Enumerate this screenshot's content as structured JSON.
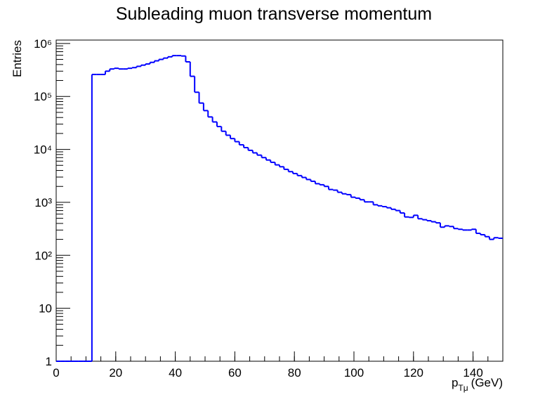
{
  "chart_data": {
    "type": "histogram",
    "title": "Subleading muon transverse momentum",
    "x_label": {
      "symbol": "p",
      "subscript": "Tμ",
      "unit": "(GeV)"
    },
    "y_label": "Entries",
    "color": "#0000ff",
    "log_y": true,
    "bins": [
      0,
      1.5,
      3,
      4.5,
      6,
      7.5,
      9,
      10.5,
      12,
      13.5,
      15,
      16.5,
      18,
      19.5,
      21,
      22.5,
      24,
      25.5,
      27,
      28.5,
      30,
      31.5,
      33,
      34.5,
      36,
      37.5,
      39,
      40.5,
      42,
      43.5,
      45,
      46.5,
      48,
      49.5,
      51,
      52.5,
      54,
      55.5,
      57,
      58.5,
      60,
      61.5,
      63,
      64.5,
      66,
      67.5,
      69,
      70.5,
      72,
      73.5,
      75,
      76.5,
      78,
      79.5,
      81,
      82.5,
      84,
      85.5,
      87,
      88.5,
      90,
      91.5,
      93,
      94.5,
      96,
      97.5,
      99,
      100.5,
      102,
      103.5,
      105,
      106.5,
      108,
      109.5,
      111,
      112.5,
      114,
      115.5,
      117,
      118.5,
      120,
      121.5,
      123,
      124.5,
      126,
      127.5,
      129,
      130.5,
      132,
      133.5,
      135,
      136.5,
      138,
      139.5,
      141,
      142.5,
      144,
      145.5,
      147,
      148.5,
      150
    ],
    "values": [
      1,
      1,
      1,
      1,
      1,
      1,
      1,
      1,
      260000,
      260000,
      260000,
      300000,
      330000,
      340000,
      330000,
      330000,
      340000,
      350000,
      370000,
      390000,
      410000,
      440000,
      470000,
      500000,
      530000,
      560000,
      590000,
      590000,
      580000,
      450000,
      240000,
      120000,
      75000,
      54000,
      41000,
      33000,
      27000,
      22000,
      18500,
      16000,
      14000,
      12200,
      10800,
      9600,
      8600,
      7800,
      7000,
      6300,
      5700,
      5100,
      4700,
      4200,
      3800,
      3500,
      3200,
      2950,
      2700,
      2500,
      2250,
      2150,
      2000,
      1750,
      1700,
      1550,
      1450,
      1400,
      1250,
      1200,
      1120,
      1020,
      1020,
      900,
      860,
      830,
      790,
      740,
      700,
      630,
      530,
      520,
      570,
      490,
      470,
      450,
      430,
      410,
      340,
      360,
      350,
      320,
      310,
      300,
      300,
      310,
      260,
      245,
      225,
      200,
      215,
      210
    ],
    "xlim": [
      0,
      150
    ],
    "xticks": [
      0,
      20,
      40,
      60,
      80,
      100,
      120,
      140
    ],
    "ylim": [
      1,
      1160000
    ],
    "yticks": [
      1,
      10,
      {
        "value": 100,
        "label": "10²"
      },
      {
        "value": 1000,
        "label": "10³"
      },
      {
        "value": 10000,
        "label": "10⁴"
      },
      {
        "value": 100000,
        "label": "10⁵"
      },
      {
        "value": 1000000,
        "label": "10⁶"
      }
    ]
  }
}
